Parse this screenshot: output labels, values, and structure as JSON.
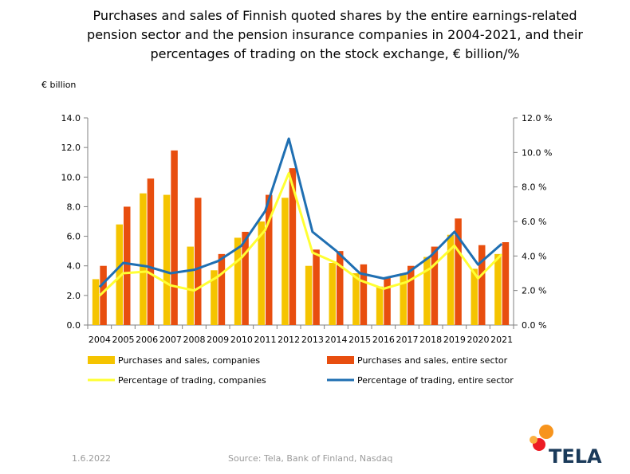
{
  "title": "Purchases and sales of Finnish quoted shares by the entire earnings-related pension sector and the pension insurance companies in 2004-2021, and their percentages of trading on the stock exchange, € billion/%",
  "title_lines": [
    "Purchases and sales of Finnish quoted shares by the entire earnings-related",
    "pension sector and the pension insurance companies in 2004-2021, and their",
    "percentages of trading on the stock exchange, € billion/%"
  ],
  "unit_label": "€ billion",
  "footer": {
    "date": "1.6.2022",
    "source": "Source: Tela, Bank of Finland, Nasdaq"
  },
  "logo": {
    "text": "TELA",
    "colors": [
      "#f7941d",
      "#ed1c24",
      "#fbb040"
    ]
  },
  "chart_data": {
    "type": "bar",
    "categories": [
      "2004",
      "2005",
      "2006",
      "2007",
      "2008",
      "2009",
      "2010",
      "2011",
      "2012",
      "2013",
      "2014",
      "2015",
      "2016",
      "2017",
      "2018",
      "2019",
      "2020",
      "2021"
    ],
    "y_left": {
      "ylim": [
        0,
        14
      ],
      "ticks": [
        "0.0",
        "2.0",
        "4.0",
        "6.0",
        "8.0",
        "10.0",
        "12.0",
        "14.0"
      ]
    },
    "y_right": {
      "ylim": [
        0,
        12
      ],
      "ticks": [
        "0.0 %",
        "2.0 %",
        "4.0 %",
        "6.0 %",
        "8.0 %",
        "10.0 %",
        "12.0 %"
      ]
    },
    "grid": false,
    "legend_position": "bottom",
    "series": [
      {
        "name": "Purchases and sales, companies",
        "type": "bar",
        "axis": "left",
        "color": "#f5c400",
        "values": [
          3.1,
          6.8,
          8.9,
          8.8,
          5.3,
          3.7,
          5.9,
          7.0,
          8.6,
          4.0,
          4.2,
          3.5,
          2.6,
          3.5,
          4.6,
          6.1,
          3.8,
          4.8
        ]
      },
      {
        "name": "Purchases and sales, entire sector",
        "type": "bar",
        "axis": "left",
        "color": "#e84e0f",
        "values": [
          4.0,
          8.0,
          9.9,
          11.8,
          8.6,
          4.8,
          6.3,
          8.8,
          10.6,
          5.1,
          5.0,
          4.1,
          3.2,
          4.0,
          5.3,
          7.2,
          5.4,
          5.6
        ]
      },
      {
        "name": "Percentage of trading, companies",
        "type": "line",
        "axis": "right",
        "color": "#ffff33",
        "values": [
          1.7,
          3.0,
          3.1,
          2.3,
          2.0,
          2.8,
          3.9,
          5.5,
          8.8,
          4.2,
          3.6,
          2.6,
          2.1,
          2.5,
          3.3,
          4.6,
          2.7,
          4.1
        ]
      },
      {
        "name": "Percentage of trading, entire sector",
        "type": "line",
        "axis": "right",
        "color": "#1f6fb2",
        "values": [
          2.2,
          3.6,
          3.4,
          3.0,
          3.2,
          3.7,
          4.6,
          6.6,
          10.8,
          5.4,
          4.3,
          3.0,
          2.7,
          3.0,
          4.0,
          5.4,
          3.5,
          4.7
        ]
      }
    ]
  }
}
